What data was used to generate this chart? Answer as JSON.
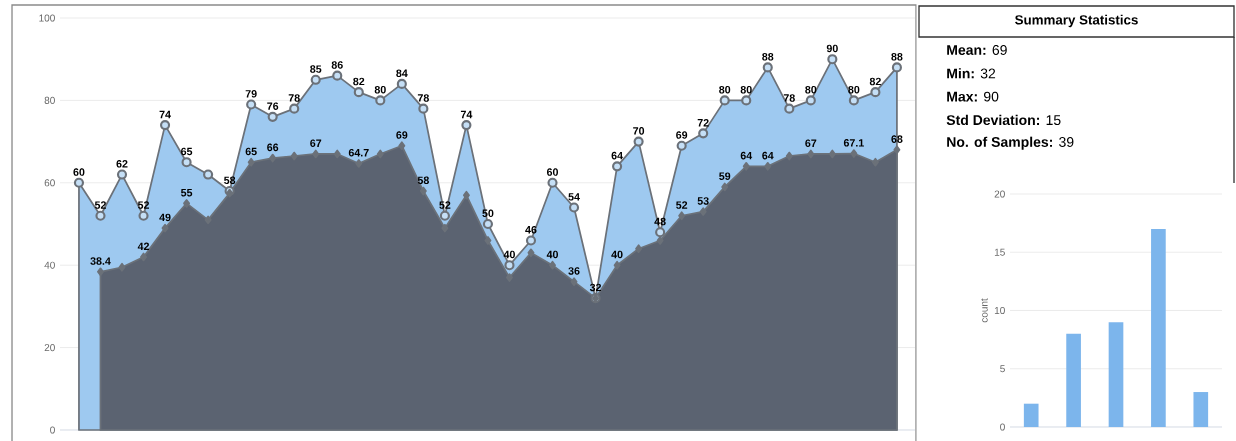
{
  "chart_data": [
    {
      "type": "area",
      "categories": [
        null,
        null,
        null,
        null,
        null,
        null,
        null,
        null,
        null,
        null,
        null,
        null,
        null,
        null,
        null,
        null,
        null,
        null,
        null,
        null,
        null,
        null,
        null,
        null,
        null,
        null,
        null,
        null,
        null,
        null,
        null,
        null,
        null,
        null,
        null,
        null,
        null,
        null,
        null
      ],
      "ylim": [
        0,
        100
      ],
      "yticks": [
        0,
        20,
        40,
        60,
        80,
        100
      ],
      "grid": "y",
      "series": [
        {
          "color": "#9ec9f0",
          "marker": "circle",
          "values": [
            60,
            52,
            62,
            52,
            74,
            65,
            62,
            58,
            79,
            76,
            78,
            85,
            86,
            82,
            80,
            84,
            78,
            52,
            74,
            50,
            40,
            46,
            60,
            54,
            32,
            64,
            70,
            48,
            69,
            72,
            80,
            80,
            88,
            78,
            80,
            90,
            80,
            82,
            88
          ],
          "value_labels": [
            "60",
            "52",
            "62",
            "52",
            "74",
            "65",
            null,
            "58",
            "79",
            "76",
            "78",
            "85",
            "86",
            "82",
            "80",
            "84",
            "78",
            "52",
            "74",
            "50",
            "40",
            "46",
            "60",
            "54",
            null,
            "64",
            "70",
            "48",
            "69",
            "72",
            "80",
            "80",
            "88",
            "78",
            "80",
            "90",
            "80",
            "82",
            "88"
          ]
        },
        {
          "color": "#5b6371",
          "marker": "diamond",
          "values": [
            null,
            38.4,
            39.5,
            42,
            49,
            55,
            51,
            57.5,
            65,
            66,
            66.5,
            67,
            67,
            64.7,
            67,
            69,
            58,
            49,
            57,
            46,
            37,
            43,
            40,
            36,
            32,
            40,
            44,
            46,
            52,
            53,
            59,
            64,
            64,
            66.5,
            67,
            67,
            67.1,
            65,
            68
          ],
          "value_labels": [
            null,
            "38.4",
            null,
            "42",
            "49",
            "55",
            null,
            null,
            "65",
            "66",
            null,
            "67",
            null,
            "64.7",
            null,
            "69",
            "58",
            null,
            null,
            null,
            null,
            null,
            "40",
            "36",
            "32",
            "40",
            null,
            null,
            "52",
            "53",
            "59",
            "64",
            "64",
            null,
            "67",
            null,
            "67.1",
            null,
            "68"
          ]
        }
      ]
    },
    {
      "type": "other",
      "title": "Summary Statistics",
      "annotations": [
        "**Mean:** 69",
        "**Min:** 32",
        "**Max:** 90",
        "**Std Deviation:** 15",
        "**No. of Samples:** 39"
      ]
    },
    {
      "type": "bar",
      "categories": [
        null,
        null,
        null,
        null,
        null
      ],
      "values": [
        2,
        8,
        9,
        17,
        3
      ],
      "color": "#7cb5ec",
      "ylabel": "count",
      "ylim": [
        0,
        20
      ],
      "yticks": [
        0,
        5,
        10,
        15,
        20
      ],
      "grid": "y"
    }
  ]
}
